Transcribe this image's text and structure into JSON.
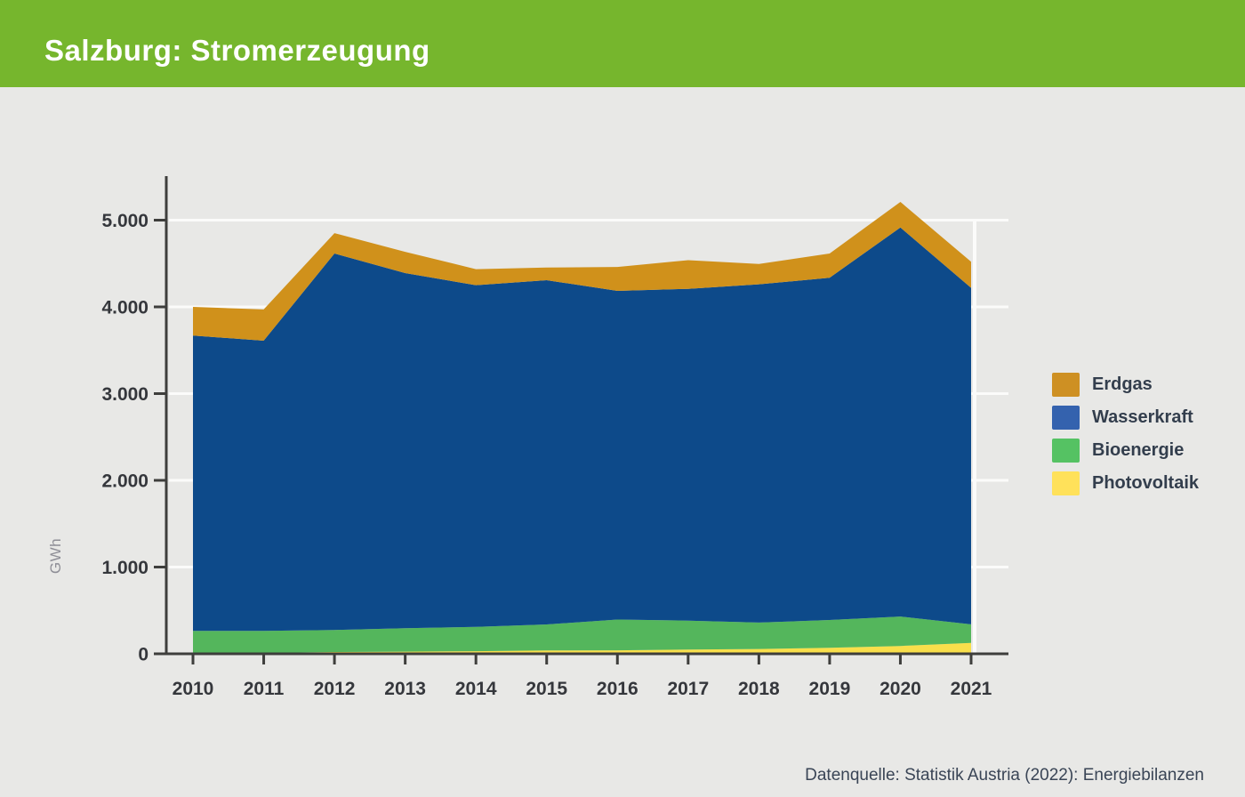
{
  "header": {
    "title": "Salzburg: Stromerzeugung",
    "background_color": "#76B62D",
    "title_color": "#FFFFFF"
  },
  "page": {
    "background_color": "#E8E8E6"
  },
  "chart_data": {
    "type": "area",
    "stacked": true,
    "title": "Salzburg: Stromerzeugung",
    "xlabel": "",
    "ylabel": "GWh",
    "ylim": [
      0,
      5500
    ],
    "grid": "horizontal-white-lines",
    "legend_position": "right",
    "categories": [
      "2010",
      "2011",
      "2012",
      "2013",
      "2014",
      "2015",
      "2016",
      "2017",
      "2018",
      "2019",
      "2020",
      "2021"
    ],
    "yticks": {
      "values": [
        0,
        1000,
        2000,
        3000,
        4000,
        5000
      ],
      "labels": [
        "0",
        "1.000",
        "2.000",
        "3.000",
        "4.000",
        "5.000"
      ]
    },
    "stack_order_bottom_to_top": [
      "Photovoltaik",
      "Bioenergie",
      "Wasserkraft",
      "Erdgas"
    ],
    "series": [
      {
        "name": "Erdgas",
        "color": "#D0911B",
        "legend_color": "#CE9023",
        "values": [
          330,
          360,
          235,
          245,
          185,
          145,
          275,
          330,
          235,
          280,
          295,
          300
        ]
      },
      {
        "name": "Wasserkraft",
        "color": "#0D4A8A",
        "legend_color": "#3462AE",
        "values": [
          3405,
          3345,
          4340,
          4095,
          3940,
          3970,
          3790,
          3825,
          3900,
          3945,
          4485,
          3880
        ]
      },
      {
        "name": "Bioenergie",
        "color": "#54B65C",
        "legend_color": "#55C263",
        "values": [
          260,
          255,
          255,
          270,
          280,
          300,
          355,
          335,
          305,
          320,
          340,
          215
        ]
      },
      {
        "name": "Photovoltaik",
        "color": "#F9DF4B",
        "legend_color": "#FFE15A",
        "values": [
          5,
          10,
          20,
          25,
          30,
          38,
          40,
          48,
          55,
          70,
          90,
          125
        ]
      }
    ],
    "axis_color": "#3E3E3C",
    "tick_label_color": "#35373C",
    "gridline_color": "#FBFBFA",
    "ylabel_color": "#8E8E96"
  },
  "footer": {
    "source": "Datenquelle: Statistik Austria (2022): Energiebilanzen"
  }
}
